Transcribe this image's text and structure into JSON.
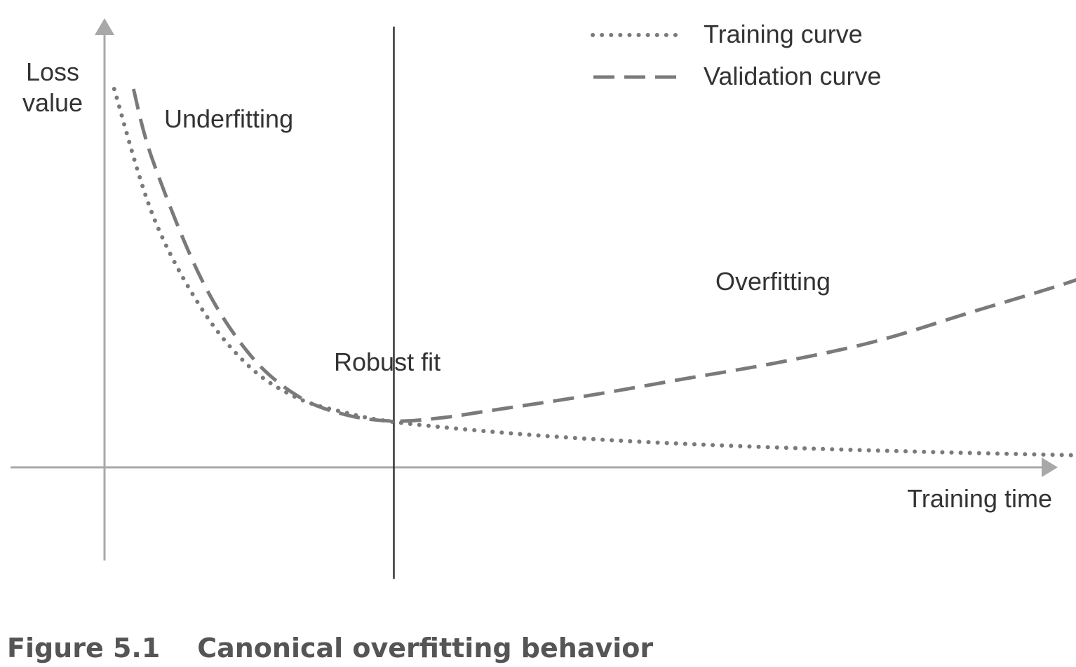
{
  "chart_data": {
    "type": "line",
    "xlabel": "Training time",
    "ylabel_line1": "Loss",
    "ylabel_line2": "value",
    "grid": false,
    "legend_position": "top-right",
    "series": [
      {
        "name": "Training curve",
        "style": "dotted",
        "color": "#7a7a7a",
        "points": [
          [
            0.1,
            0.9
          ],
          [
            0.5,
            0.6
          ],
          [
            1,
            0.38
          ],
          [
            1.5,
            0.24
          ],
          [
            2,
            0.165
          ],
          [
            2.5,
            0.13
          ],
          [
            3,
            0.108
          ],
          [
            4,
            0.085
          ],
          [
            5,
            0.068
          ],
          [
            6,
            0.056
          ],
          [
            7,
            0.047
          ],
          [
            8,
            0.04
          ],
          [
            9,
            0.034
          ],
          [
            10,
            0.029
          ],
          [
            11,
            0.024
          ],
          [
            11.7,
            0.021
          ]
        ]
      },
      {
        "name": "Validation curve",
        "style": "dashed",
        "color": "#7a7a7a",
        "points": [
          [
            0.3,
            0.9
          ],
          [
            0.5,
            0.73
          ],
          [
            1,
            0.45
          ],
          [
            1.5,
            0.27
          ],
          [
            2,
            0.17
          ],
          [
            2.5,
            0.125
          ],
          [
            3,
            0.11
          ],
          [
            3.5,
            0.118
          ],
          [
            4,
            0.135
          ],
          [
            5,
            0.17
          ],
          [
            6,
            0.21
          ],
          [
            7,
            0.25
          ],
          [
            8,
            0.3
          ],
          [
            9,
            0.37
          ],
          [
            10,
            0.44
          ],
          [
            11,
            0.52
          ],
          [
            11.5,
            0.57
          ]
        ]
      }
    ],
    "annotations": {
      "underfitting": "Underfitting",
      "robust_fit": "Robust fit",
      "overfitting": "Overfitting"
    },
    "robust_fit_x": 3
  },
  "caption": "Figure 5.1    Canonical overfitting behavior"
}
